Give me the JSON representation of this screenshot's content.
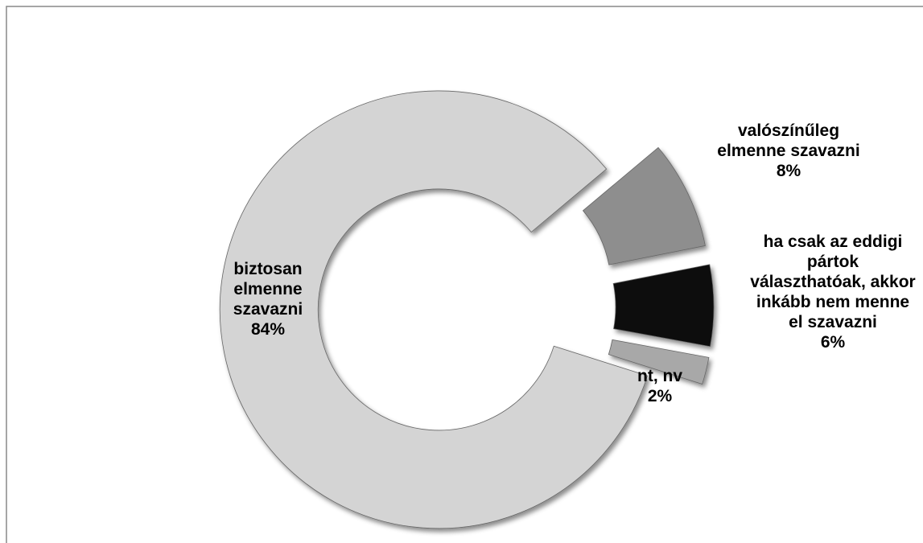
{
  "chart_data": {
    "type": "donut",
    "categories": [
      "valószínűleg elmenne szavazni",
      "ha csak az eddigi pártok választhatóak, akkor inkább nem menne el szavazni",
      "nt, nv",
      "biztosan elmenne szavazni"
    ],
    "values": [
      8,
      6,
      2,
      84
    ],
    "value_labels": [
      "8%",
      "6%",
      "2%",
      "84%"
    ],
    "colors": [
      "#8e8e8e",
      "#0a0a0a",
      "#a8a8a8",
      "#d4d4d4"
    ]
  }
}
